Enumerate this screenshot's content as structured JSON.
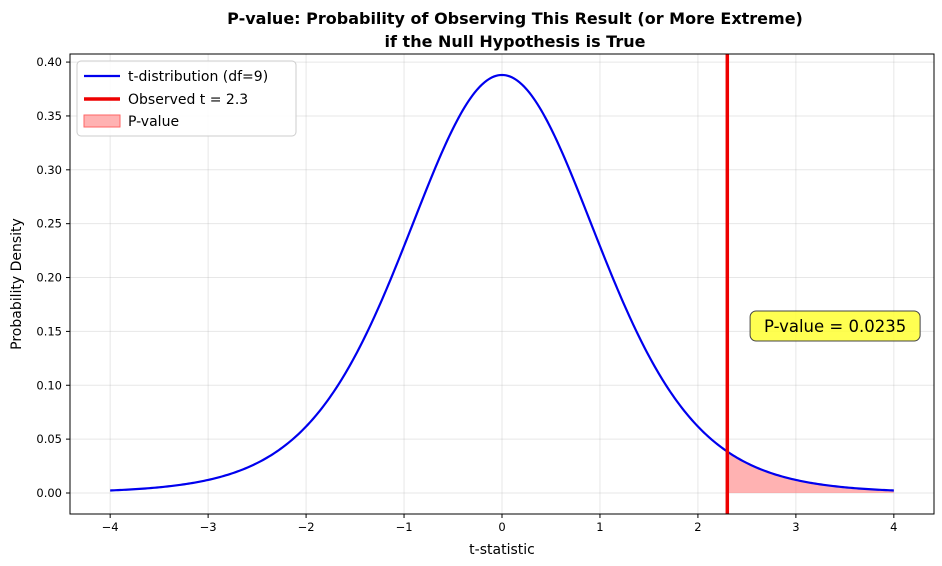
{
  "chart_data": {
    "type": "line",
    "title_lines": [
      "P-value: Probability of Observing This Result (or More Extreme)",
      "if the Null Hypothesis is True"
    ],
    "xlabel": "t-statistic",
    "ylabel": "Probability Density",
    "xlim": [
      -4.41,
      4.41
    ],
    "ylim": [
      -0.0195,
      0.4075
    ],
    "x_ticks": [
      -4,
      -3,
      -2,
      -1,
      0,
      1,
      2,
      3,
      4
    ],
    "x_tick_labels": [
      "−4",
      "−3",
      "−2",
      "−1",
      "0",
      "1",
      "2",
      "3",
      "4"
    ],
    "y_ticks": [
      0.0,
      0.05,
      0.1,
      0.15,
      0.2,
      0.25,
      0.3,
      0.35,
      0.4
    ],
    "y_tick_labels": [
      "0.00",
      "0.05",
      "0.10",
      "0.15",
      "0.20",
      "0.25",
      "0.30",
      "0.35",
      "0.40"
    ],
    "grid": true,
    "legend_position": "top-left",
    "series": [
      {
        "name": "t-distribution (df=9)",
        "kind": "line",
        "color": "#0000ee",
        "df": 9,
        "x_range": [
          -4,
          4
        ]
      },
      {
        "name": "Observed t = 2.3",
        "kind": "vline",
        "color": "#ee0000",
        "x": 2.3
      },
      {
        "name": "P-value",
        "kind": "area",
        "color": "#ff7f7f",
        "x_range": [
          2.3,
          4
        ]
      }
    ],
    "annotation": {
      "text": "P-value = 0.0235",
      "x": 3.4,
      "y": 0.155,
      "box_color": "#ffff33"
    }
  }
}
